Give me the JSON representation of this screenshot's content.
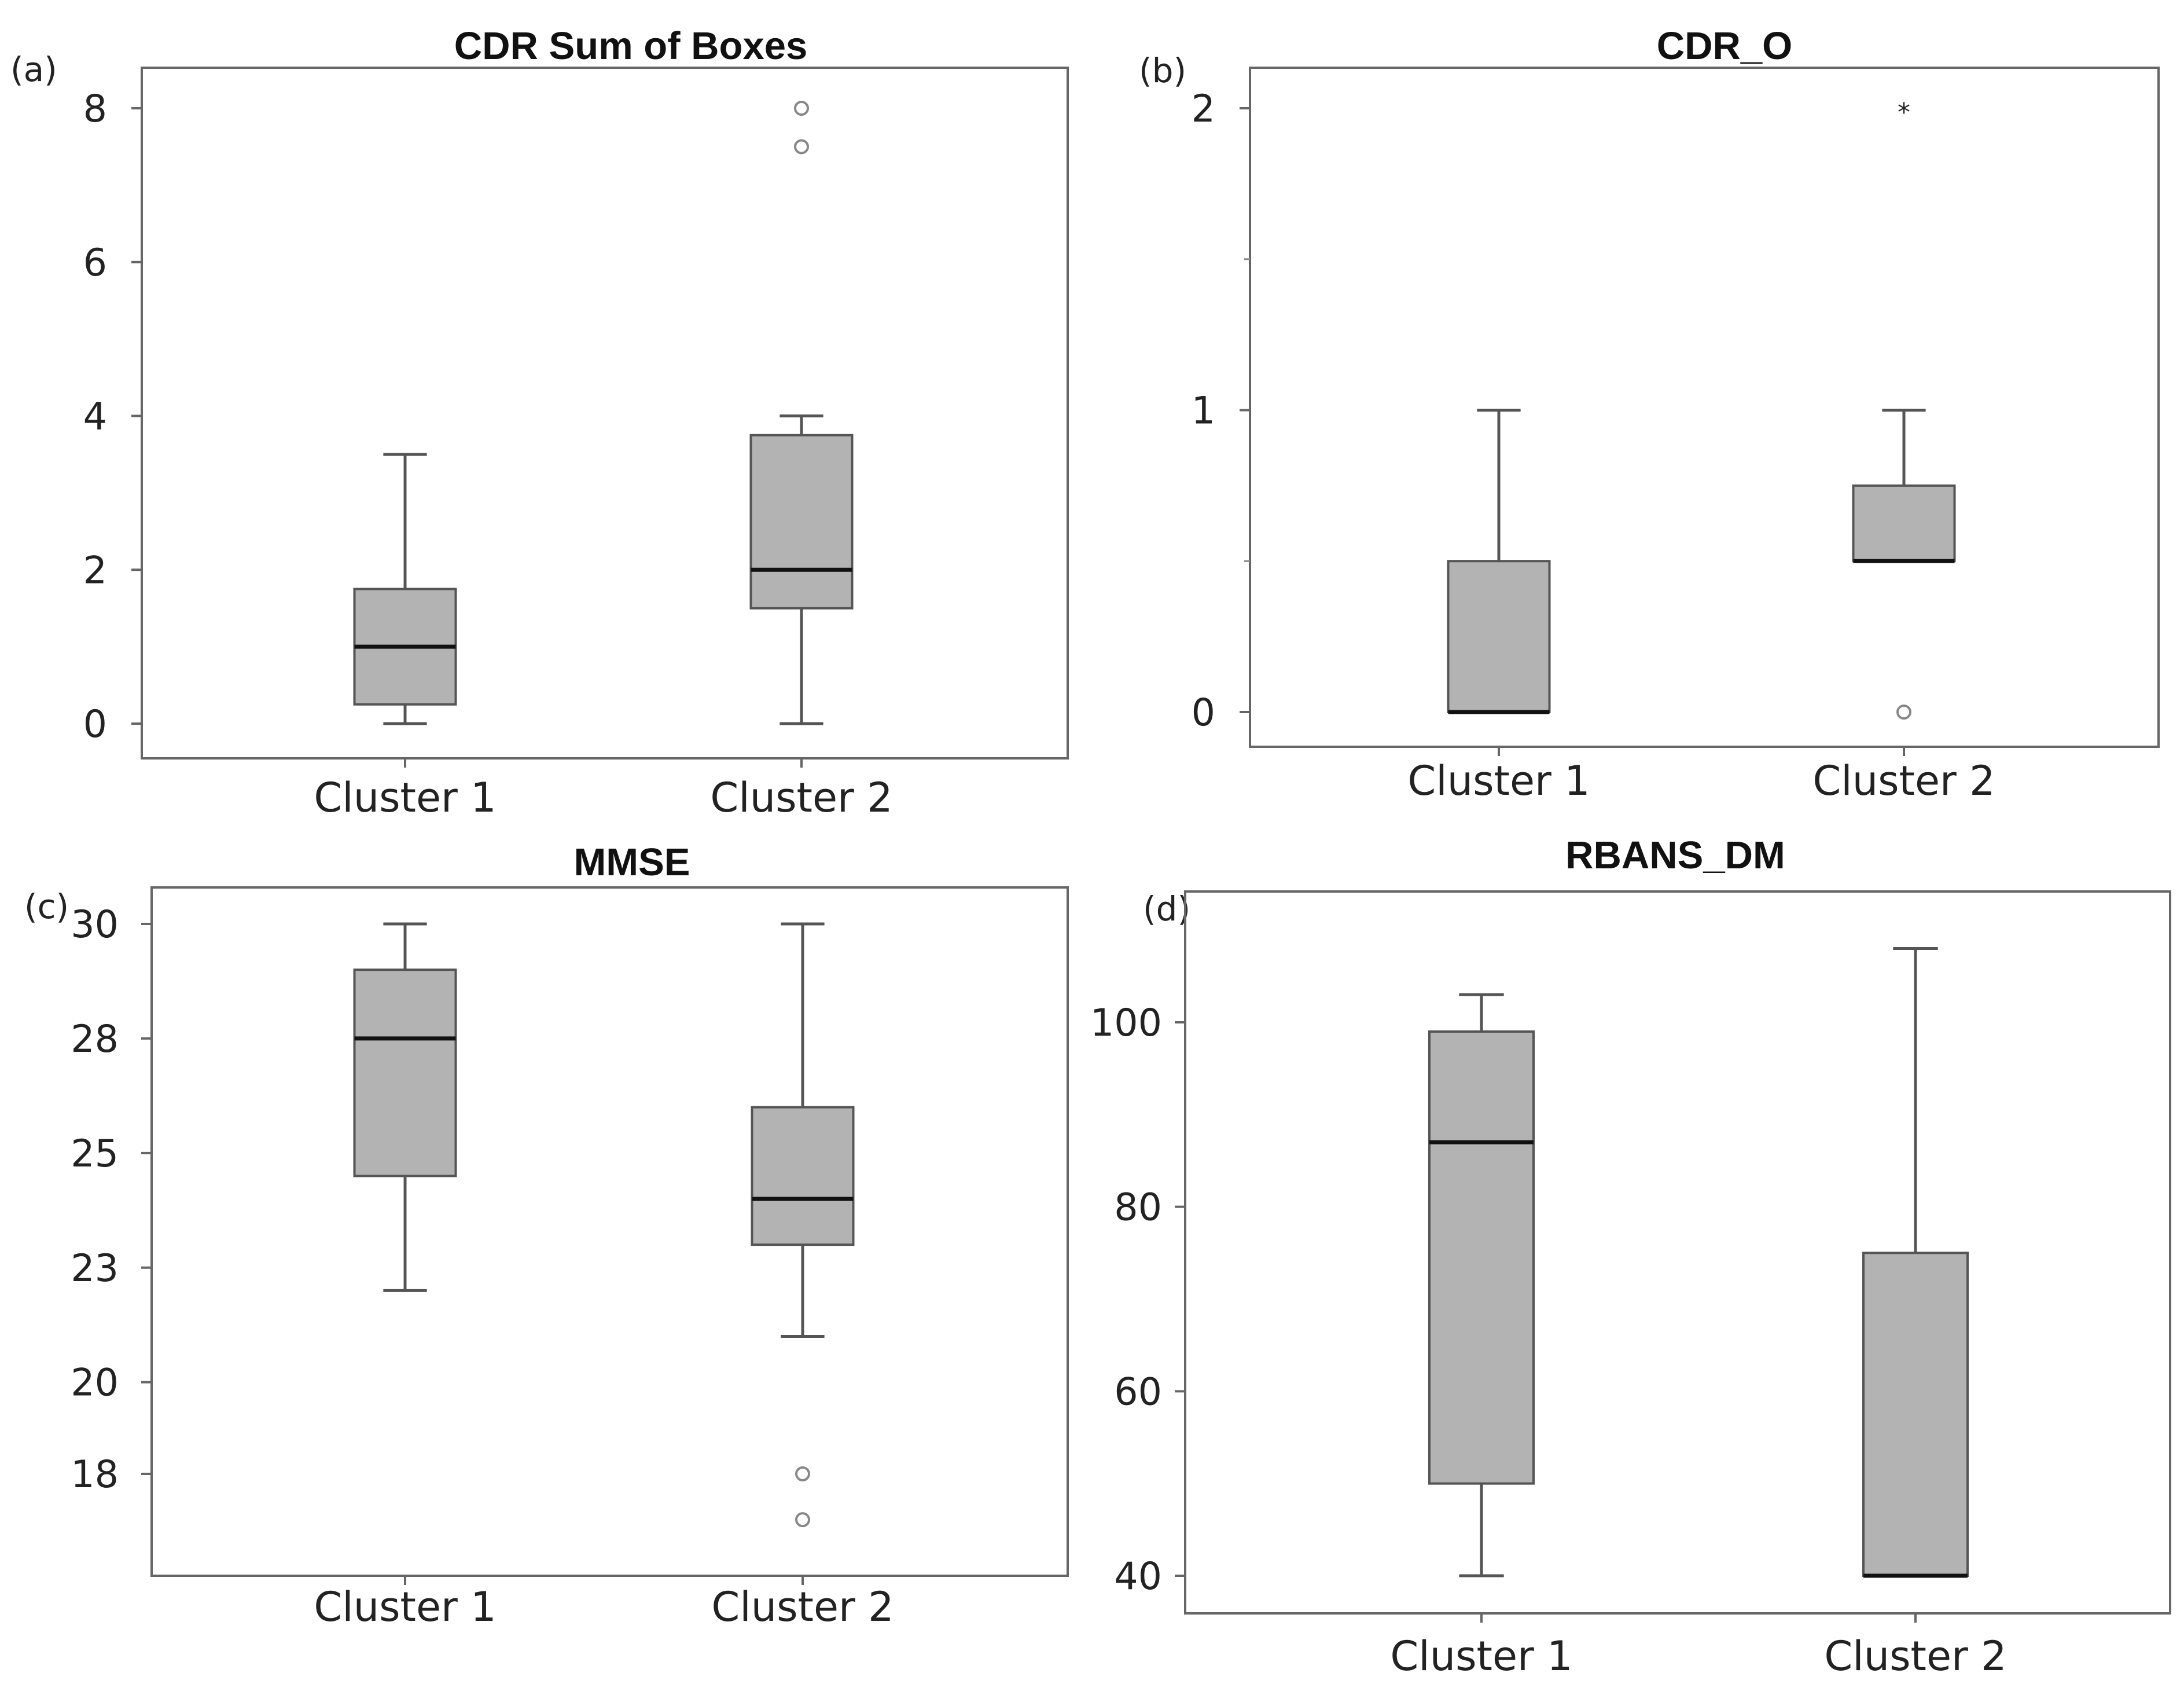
{
  "chart_data": [
    {
      "type": "box",
      "panel_label": "(a)",
      "title": "CDR Sum of Boxes",
      "xlabel": "",
      "ylabel": "",
      "categories": [
        "Cluster 1",
        "Cluster 2"
      ],
      "y_ticks": [
        {
          "v": 0,
          "label": "0"
        },
        {
          "v": 2,
          "label": "2"
        },
        {
          "v": 4,
          "label": "4"
        },
        {
          "v": 6,
          "label": "6"
        },
        {
          "v": 8,
          "label": "8"
        }
      ],
      "boxes": [
        {
          "name": "Cluster 1",
          "min": 0,
          "q1": 0.25,
          "median": 1,
          "q3": 1.75,
          "max": 3.5,
          "outliers": []
        },
        {
          "name": "Cluster 2",
          "min": 0,
          "q1": 1.5,
          "median": 2,
          "q3": 3.75,
          "max": 4,
          "outliers": [
            7.5,
            8
          ]
        }
      ],
      "outlier_marker": "circle",
      "colors": {
        "box_fill": "#b3b3b3",
        "line": "#555555",
        "median": "#111111"
      }
    },
    {
      "type": "box",
      "panel_label": "(b)",
      "title": "CDR_O",
      "xlabel": "",
      "ylabel": "",
      "categories": [
        "Cluster 1",
        "Cluster 2"
      ],
      "y_ticks": [
        {
          "v": 0,
          "label": "0"
        },
        {
          "v": 1,
          "label": "1"
        },
        {
          "v": 2,
          "label": "2"
        }
      ],
      "minor_ticks": [
        0.5,
        1.5
      ],
      "boxes": [
        {
          "name": "Cluster 1",
          "min": 0,
          "q1": 0,
          "median": 0,
          "q3": 0.5,
          "max": 1,
          "outliers": []
        },
        {
          "name": "Cluster 2",
          "min": 0.5,
          "q1": 0.5,
          "median": 0.5,
          "q3": 0.75,
          "max": 1,
          "outliers": [
            0
          ]
        }
      ],
      "extremes": [
        {
          "box": 1,
          "value": 2
        }
      ],
      "outlier_marker": "circle",
      "colors": {
        "box_fill": "#b3b3b3",
        "line": "#555555",
        "median": "#111111"
      }
    },
    {
      "type": "box",
      "panel_label": "(c)",
      "title": "MMSE",
      "xlabel": "",
      "ylabel": "",
      "categories": [
        "Cluster 1",
        "Cluster 2"
      ],
      "y_ticks": [
        {
          "v": 18,
          "label": "18"
        },
        {
          "v": 20,
          "label": "20"
        },
        {
          "v": 22.5,
          "label": "23"
        },
        {
          "v": 25,
          "label": "25"
        },
        {
          "v": 27.5,
          "label": "28"
        },
        {
          "v": 30,
          "label": "30"
        }
      ],
      "boxes": [
        {
          "name": "Cluster 1",
          "min": 22,
          "q1": 24.5,
          "median": 27.5,
          "q3": 29,
          "max": 30,
          "outliers": []
        },
        {
          "name": "Cluster 2",
          "min": 21,
          "q1": 23,
          "median": 24,
          "q3": 26,
          "max": 30,
          "outliers": [
            18,
            17
          ]
        }
      ],
      "outlier_marker": "circle",
      "colors": {
        "box_fill": "#b3b3b3",
        "line": "#555555",
        "median": "#111111"
      }
    },
    {
      "type": "box",
      "panel_label": "(d)",
      "title": "RBANS_DM",
      "xlabel": "",
      "ylabel": "",
      "categories": [
        "Cluster 1",
        "Cluster 2"
      ],
      "y_ticks": [
        {
          "v": 40,
          "label": "40"
        },
        {
          "v": 60,
          "label": "60"
        },
        {
          "v": 80,
          "label": "80"
        },
        {
          "v": 100,
          "label": "100"
        }
      ],
      "boxes": [
        {
          "name": "Cluster 1",
          "min": 40,
          "q1": 50,
          "median": 87,
          "q3": 99,
          "max": 103,
          "outliers": []
        },
        {
          "name": "Cluster 2",
          "min": 40,
          "q1": 40,
          "median": 40,
          "q3": 75,
          "max": 108,
          "outliers": []
        }
      ],
      "outlier_marker": "circle",
      "colors": {
        "box_fill": "#b3b3b3",
        "line": "#555555",
        "median": "#111111"
      }
    }
  ]
}
